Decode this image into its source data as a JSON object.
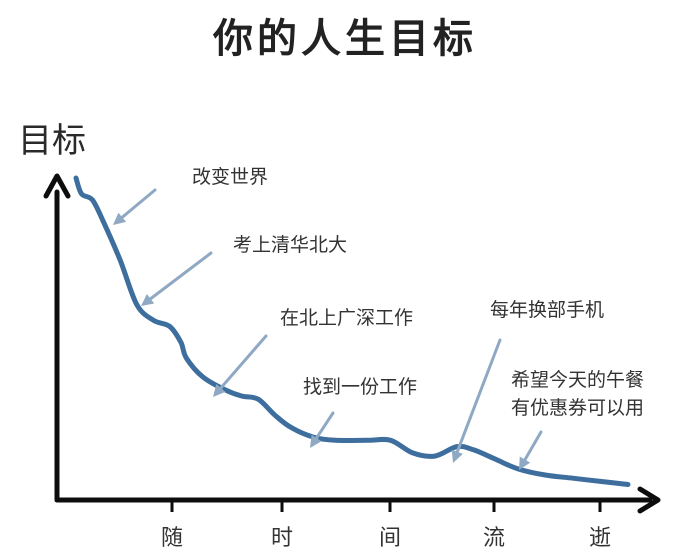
{
  "chart_data": {
    "type": "line",
    "title": "你的人生目标",
    "ylabel": "目标",
    "xlabel": "",
    "x_tick_labels": [
      "随",
      "时",
      "间",
      "流",
      "逝"
    ],
    "legend": "none",
    "grid": false,
    "series": [
      {
        "color": "#3d6e9e",
        "points": [
          [
            0.0,
            1.0
          ],
          [
            0.01,
            0.95
          ],
          [
            0.03,
            0.93
          ],
          [
            0.05,
            0.86
          ],
          [
            0.08,
            0.74
          ],
          [
            0.11,
            0.6
          ],
          [
            0.14,
            0.55
          ],
          [
            0.17,
            0.53
          ],
          [
            0.19,
            0.48
          ],
          [
            0.2,
            0.43
          ],
          [
            0.23,
            0.37
          ],
          [
            0.27,
            0.33
          ],
          [
            0.3,
            0.31
          ],
          [
            0.33,
            0.3
          ],
          [
            0.36,
            0.25
          ],
          [
            0.39,
            0.21
          ],
          [
            0.43,
            0.18
          ],
          [
            0.47,
            0.17
          ],
          [
            0.53,
            0.17
          ],
          [
            0.57,
            0.17
          ],
          [
            0.61,
            0.13
          ],
          [
            0.65,
            0.12
          ],
          [
            0.69,
            0.15
          ],
          [
            0.72,
            0.14
          ],
          [
            0.76,
            0.11
          ],
          [
            0.8,
            0.08
          ],
          [
            0.85,
            0.06
          ],
          [
            0.9,
            0.05
          ],
          [
            0.95,
            0.04
          ],
          [
            1.0,
            0.03
          ]
        ]
      }
    ],
    "annotations": [
      {
        "lines": [
          "改变世界"
        ],
        "points_to_x": 0.05
      },
      {
        "lines": [
          "考上清华北大"
        ],
        "points_to_x": 0.12
      },
      {
        "lines": [
          "在北上广深工作"
        ],
        "points_to_x": 0.29
      },
      {
        "lines": [
          "找到一份工作"
        ],
        "points_to_x": 0.46
      },
      {
        "lines": [
          "每年换部手机"
        ],
        "points_to_x": 0.72
      },
      {
        "lines": [
          "希望今天的午餐",
          "有优惠券可以用"
        ],
        "points_to_x": 0.85
      }
    ],
    "colors": {
      "axis": "#0d0d0d",
      "line": "#3d6e9e",
      "arrow": "#8fa9c4",
      "text": "#333333"
    }
  }
}
